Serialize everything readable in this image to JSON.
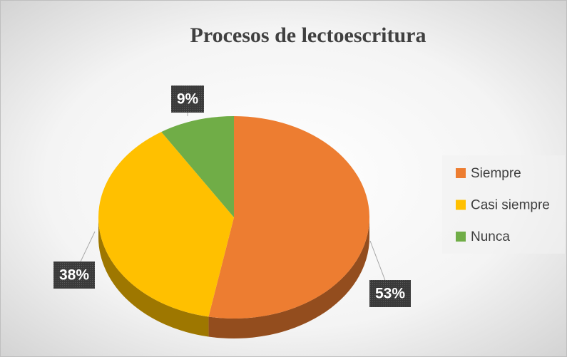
{
  "chart_data": {
    "type": "pie",
    "title": "Procesos de lectoescritura",
    "categories": [
      "Siempre",
      "Casi siempre",
      "Nunca"
    ],
    "values": [
      53,
      38,
      9
    ],
    "value_labels": [
      "53%",
      "38%",
      "9%"
    ],
    "colors": [
      "#ed7d31",
      "#ffc000",
      "#70ad47"
    ],
    "legend": "right"
  }
}
